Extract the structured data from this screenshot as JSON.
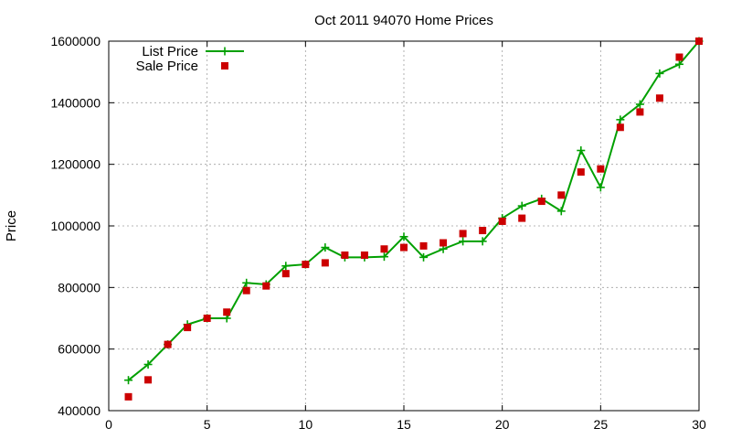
{
  "chart_data": {
    "type": "line",
    "title": "Oct 2011 94070 Home Prices",
    "xlabel": "",
    "ylabel": "Price",
    "xlim": [
      0,
      30
    ],
    "ylim": [
      400000,
      1600000
    ],
    "x_ticks": [
      "0",
      "5",
      "10",
      "15",
      "20",
      "25",
      "30"
    ],
    "y_ticks": [
      "400000",
      "600000",
      "800000",
      "1000000",
      "1200000",
      "1400000",
      "1600000"
    ],
    "grid": true,
    "legend_position": "top-left",
    "x": [
      1,
      2,
      3,
      4,
      5,
      6,
      7,
      8,
      9,
      10,
      11,
      12,
      13,
      14,
      15,
      16,
      17,
      18,
      19,
      20,
      21,
      22,
      23,
      24,
      25,
      26,
      27,
      28,
      29,
      30
    ],
    "series": [
      {
        "name": "List Price",
        "style": "line-with-plus-markers",
        "color": "#00a000",
        "values": [
          499000,
          550000,
          615000,
          680000,
          700000,
          700000,
          815000,
          810000,
          870000,
          875000,
          930000,
          898000,
          898000,
          900000,
          965000,
          898000,
          925000,
          950000,
          950000,
          1025000,
          1065000,
          1088000,
          1048000,
          1245000,
          1125000,
          1345000,
          1395000,
          1495000,
          1525000,
          1600000
        ]
      },
      {
        "name": "Sale Price",
        "style": "square-markers",
        "color": "#cc0000",
        "values": [
          445000,
          500000,
          615000,
          670000,
          700000,
          720000,
          790000,
          805000,
          845000,
          875000,
          880000,
          905000,
          905000,
          925000,
          930000,
          935000,
          945000,
          975000,
          985000,
          1015000,
          1025000,
          1080000,
          1100000,
          1175000,
          1185000,
          1320000,
          1370000,
          1415000,
          1548000,
          1600000
        ]
      }
    ]
  }
}
